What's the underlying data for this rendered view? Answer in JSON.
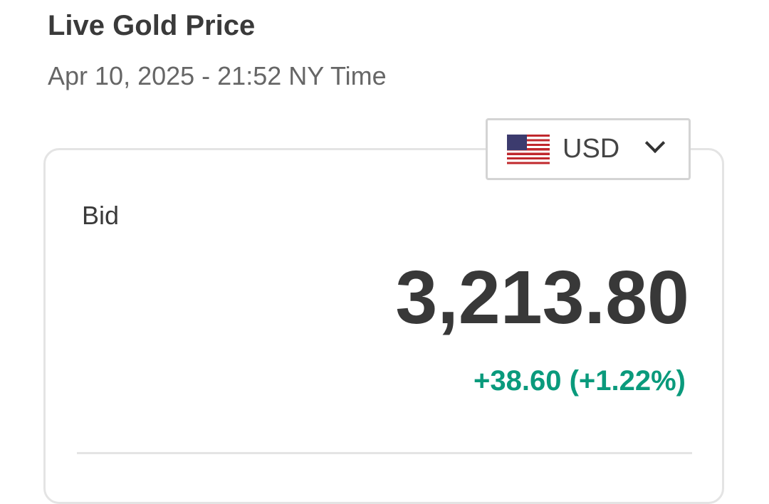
{
  "header": {
    "title": "Live Gold Price",
    "timestamp": "Apr 10, 2025 - 21:52 NY Time"
  },
  "currency": {
    "selected": "USD",
    "icon": "us-flag-icon"
  },
  "quote": {
    "label": "Bid",
    "price": "3,213.80",
    "change": "+38.60 (+1.22%)",
    "change_color": "#0a9a7c"
  }
}
